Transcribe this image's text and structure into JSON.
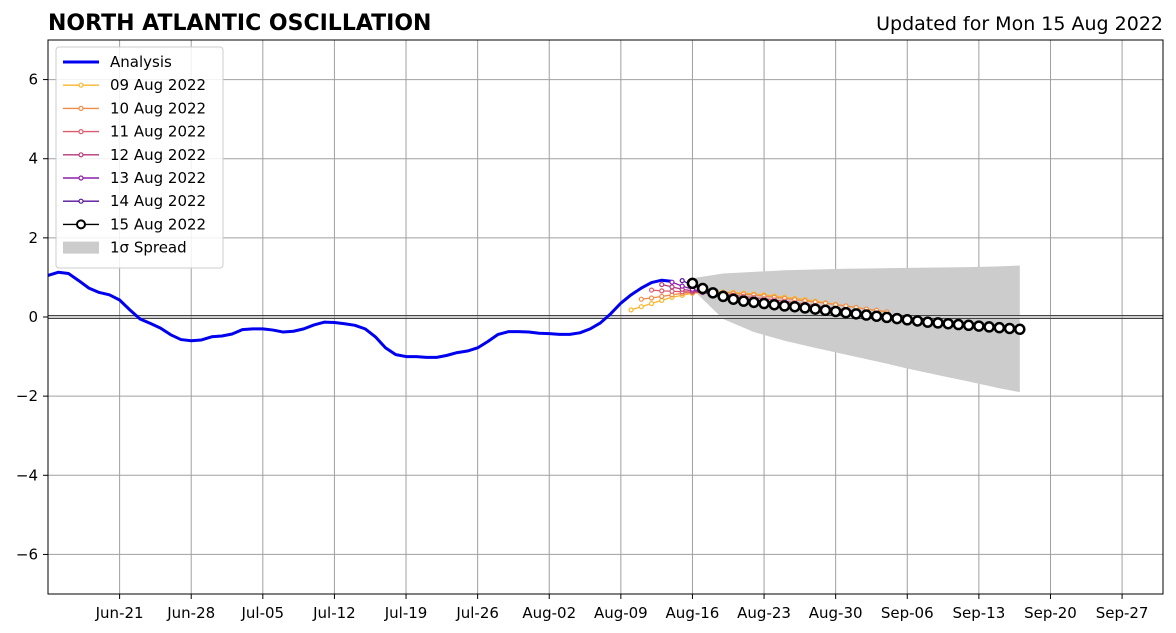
{
  "chart_data": {
    "type": "line",
    "title": "NORTH ATLANTIC OSCILLATION",
    "subtitle": "Updated for Mon 15 Aug 2022",
    "xlabel": "",
    "ylabel": "",
    "xlim": [
      "2022-06-14",
      "2022-10-01"
    ],
    "ylim": [
      -7,
      7
    ],
    "grid": true,
    "legend_position": "top-left",
    "x_ticks": [
      "2022-06-21",
      "2022-06-28",
      "2022-07-05",
      "2022-07-12",
      "2022-07-19",
      "2022-07-26",
      "2022-08-02",
      "2022-08-09",
      "2022-08-16",
      "2022-08-23",
      "2022-08-30",
      "2022-09-06",
      "2022-09-13",
      "2022-09-20",
      "2022-09-27"
    ],
    "x_tick_labels": [
      "Jun-21",
      "Jun-28",
      "Jul-05",
      "Jul-12",
      "Jul-19",
      "Jul-26",
      "Aug-02",
      "Aug-09",
      "Aug-16",
      "Aug-23",
      "Aug-30",
      "Sep-06",
      "Sep-13",
      "Sep-20",
      "Sep-27"
    ],
    "y_ticks": [
      -6,
      -4,
      -2,
      0,
      2,
      4,
      6
    ],
    "y_tick_labels": [
      "−6",
      "−4",
      "−2",
      "0",
      "2",
      "4",
      "6"
    ],
    "analysis": {
      "name": "Analysis",
      "color": "#0000ee",
      "start": "2022-06-14",
      "values": [
        1.05,
        1.13,
        1.1,
        0.92,
        0.73,
        0.62,
        0.56,
        0.43,
        0.18,
        -0.05,
        -0.16,
        -0.28,
        -0.45,
        -0.57,
        -0.6,
        -0.58,
        -0.5,
        -0.48,
        -0.43,
        -0.32,
        -0.3,
        -0.3,
        -0.33,
        -0.38,
        -0.36,
        -0.3,
        -0.2,
        -0.13,
        -0.14,
        -0.17,
        -0.21,
        -0.3,
        -0.5,
        -0.78,
        -0.95,
        -1.0,
        -1.0,
        -1.02,
        -1.02,
        -0.97,
        -0.9,
        -0.86,
        -0.78,
        -0.62,
        -0.44,
        -0.37,
        -0.37,
        -0.38,
        -0.41,
        -0.42,
        -0.44,
        -0.44,
        -0.4,
        -0.3,
        -0.15,
        0.08,
        0.35,
        0.56,
        0.73,
        0.87,
        0.93,
        0.9
      ]
    },
    "forecasts": [
      {
        "name": "09 Aug 2022",
        "color": "#fbb62c",
        "start": "2022-08-10",
        "values": [
          0.18,
          0.26,
          0.34,
          0.42,
          0.5,
          0.55,
          0.6,
          0.62,
          0.64,
          0.63,
          0.62,
          0.6,
          0.58,
          0.56,
          0.53,
          0.5,
          0.47,
          0.44,
          0.4,
          0.36,
          0.32,
          0.28,
          0.24,
          0.2,
          0.16,
          0.12
        ]
      },
      {
        "name": "10 Aug 2022",
        "color": "#f08c48",
        "start": "2022-08-11",
        "values": [
          0.45,
          0.48,
          0.52,
          0.56,
          0.6,
          0.62,
          0.63,
          0.63,
          0.62,
          0.6,
          0.58,
          0.56,
          0.53,
          0.5,
          0.47,
          0.44,
          0.41,
          0.38,
          0.35,
          0.31,
          0.28,
          0.24,
          0.2,
          0.17,
          0.13
        ]
      },
      {
        "name": "11 Aug 2022",
        "color": "#dd5a6f",
        "start": "2022-08-12",
        "values": [
          0.68,
          0.66,
          0.65,
          0.64,
          0.63,
          0.62,
          0.6,
          0.58,
          0.55,
          0.52,
          0.49,
          0.46,
          0.43,
          0.4,
          0.36,
          0.33,
          0.29,
          0.25,
          0.22,
          0.18,
          0.14,
          0.1,
          0.06,
          0.02,
          -0.02,
          -0.06,
          -0.09,
          -0.13,
          -0.17,
          -0.2,
          -0.23,
          -0.26,
          -0.28,
          -0.3,
          -0.31
        ]
      },
      {
        "name": "12 Aug 2022",
        "color": "#b73779",
        "start": "2022-08-13",
        "values": [
          0.82,
          0.76,
          0.7,
          0.66,
          0.62,
          0.58,
          0.54,
          0.5,
          0.47,
          0.43,
          0.4,
          0.37,
          0.34,
          0.31,
          0.28,
          0.25,
          0.21,
          0.18,
          0.15,
          0.11,
          0.08,
          0.04,
          0.0,
          -0.03,
          -0.06,
          -0.09,
          -0.12,
          -0.15,
          -0.18,
          -0.2,
          -0.22,
          -0.24,
          -0.26,
          -0.28,
          -0.29
        ]
      },
      {
        "name": "13 Aug 2022",
        "color": "#8c1eab",
        "start": "2022-08-14",
        "values": [
          0.88,
          0.78,
          0.7,
          0.63,
          0.57,
          0.52,
          0.47,
          0.43,
          0.4,
          0.37,
          0.34,
          0.31,
          0.28,
          0.25,
          0.22,
          0.19,
          0.16,
          0.13,
          0.1,
          0.07,
          0.04,
          0.01,
          -0.02,
          -0.05,
          -0.08,
          -0.11,
          -0.14,
          -0.17,
          -0.2,
          -0.22,
          -0.24,
          -0.26,
          -0.28,
          -0.29
        ]
      },
      {
        "name": "14 Aug 2022",
        "color": "#55109b",
        "start": "2022-08-15",
        "values": [
          0.92,
          0.8,
          0.7,
          0.62,
          0.55,
          0.49,
          0.44,
          0.4,
          0.36,
          0.33,
          0.3,
          0.27,
          0.24,
          0.21,
          0.18,
          0.15,
          0.12,
          0.09,
          0.06,
          0.03,
          0.0,
          -0.03,
          -0.06,
          -0.09,
          -0.12,
          -0.15,
          -0.17,
          -0.2,
          -0.22,
          -0.24,
          -0.26,
          -0.28,
          -0.3
        ]
      }
    ],
    "latest_forecast": {
      "name": "15 Aug 2022",
      "color": "#000000",
      "start": "2022-08-16",
      "values": [
        0.85,
        0.72,
        0.61,
        0.52,
        0.45,
        0.4,
        0.37,
        0.34,
        0.31,
        0.28,
        0.26,
        0.23,
        0.2,
        0.17,
        0.14,
        0.11,
        0.08,
        0.05,
        0.02,
        -0.01,
        -0.04,
        -0.07,
        -0.1,
        -0.13,
        -0.15,
        -0.17,
        -0.19,
        -0.21,
        -0.23,
        -0.25,
        -0.27,
        -0.29,
        -0.31
      ]
    },
    "spread": {
      "name": "1σ Spread",
      "color": "#cccccc",
      "x": [
        "2022-08-16",
        "2022-08-19",
        "2022-08-22",
        "2022-08-25",
        "2022-08-28",
        "2022-08-31",
        "2022-09-03",
        "2022-09-06",
        "2022-09-09",
        "2022-09-12",
        "2022-09-15",
        "2022-09-17"
      ],
      "upper": [
        0.98,
        1.1,
        1.14,
        1.18,
        1.2,
        1.22,
        1.23,
        1.24,
        1.25,
        1.26,
        1.28,
        1.3
      ],
      "lower": [
        0.7,
        -0.05,
        -0.38,
        -0.6,
        -0.78,
        -0.95,
        -1.12,
        -1.3,
        -1.47,
        -1.63,
        -1.8,
        -1.9
      ]
    }
  }
}
